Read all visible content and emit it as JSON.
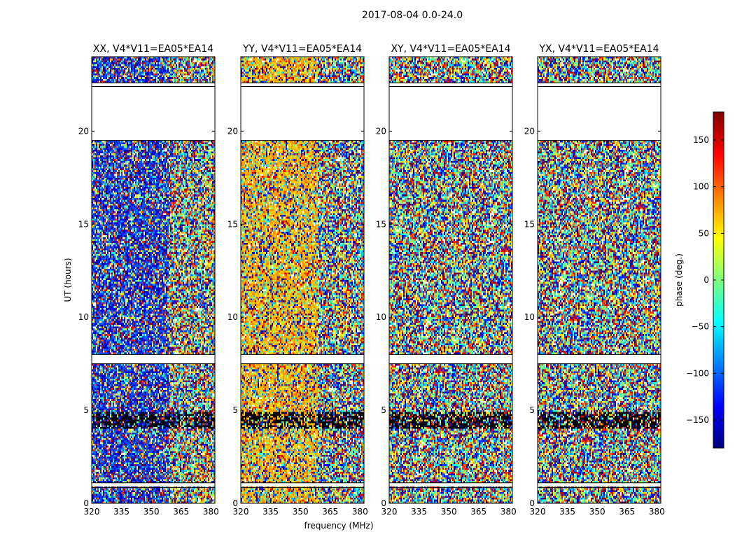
{
  "figure": {
    "suptitle": "2017-08-04 0.0-24.0"
  },
  "chart_data": [
    {
      "type": "heatmap",
      "title": "XX, V4*V11=EA05*EA14",
      "xlabel": "",
      "ylabel": "UT (hours)",
      "xlim": [
        320,
        382
      ],
      "ylim": [
        0,
        24
      ],
      "xticks": [
        "320",
        "335",
        "350",
        "365",
        "380"
      ],
      "yticks": [
        "0",
        "5",
        "10",
        "15",
        "20"
      ],
      "dominant_colors": [
        "#0000cc",
        "#0050ff"
      ],
      "flagged_rows": [
        [
          0.85,
          1.1
        ],
        [
          7.5,
          8.0
        ],
        [
          19.5,
          22.4
        ],
        [
          22.4,
          22.6
        ]
      ]
    },
    {
      "type": "heatmap",
      "title": "YY, V4*V11=EA05*EA14",
      "xlabel": "frequency (MHz)",
      "ylabel": "",
      "xlim": [
        320,
        382
      ],
      "ylim": [
        0,
        24
      ],
      "xticks": [
        "320",
        "335",
        "350",
        "365",
        "380"
      ],
      "yticks": [
        "0",
        "5",
        "10",
        "15",
        "20"
      ],
      "dominant_colors": [
        "#ffcc00",
        "#ff9900"
      ],
      "flagged_rows": [
        [
          0.85,
          1.1
        ],
        [
          7.5,
          8.0
        ],
        [
          19.5,
          22.4
        ],
        [
          22.4,
          22.6
        ]
      ]
    },
    {
      "type": "heatmap",
      "title": "XY, V4*V11=EA05*EA14",
      "xlabel": "",
      "ylabel": "",
      "xlim": [
        320,
        382
      ],
      "ylim": [
        0,
        24
      ],
      "xticks": [
        "320",
        "335",
        "350",
        "365",
        "380"
      ],
      "yticks": [
        "0",
        "5",
        "10",
        "15",
        "20"
      ],
      "dominant_colors": [],
      "flagged_rows": [
        [
          0.85,
          1.1
        ],
        [
          7.5,
          8.0
        ],
        [
          19.5,
          22.4
        ],
        [
          22.4,
          22.6
        ]
      ]
    },
    {
      "type": "heatmap",
      "title": "YX, V4*V11=EA05*EA14",
      "xlabel": "",
      "ylabel": "",
      "xlim": [
        320,
        382
      ],
      "ylim": [
        0,
        24
      ],
      "xticks": [
        "320",
        "335",
        "350",
        "365",
        "380"
      ],
      "yticks": [
        "0",
        "5",
        "10",
        "15",
        "20"
      ],
      "dominant_colors": [],
      "flagged_rows": [
        [
          0.85,
          1.1
        ],
        [
          7.5,
          8.0
        ],
        [
          19.5,
          22.4
        ],
        [
          22.4,
          22.6
        ]
      ]
    }
  ],
  "colorbar": {
    "label": "phase (deg.)",
    "range": [
      -180,
      180
    ],
    "ticks": [
      "150",
      "100",
      "50",
      "0",
      "−50",
      "−100",
      "−150"
    ],
    "tick_values": [
      150,
      100,
      50,
      0,
      -50,
      -100,
      -150
    ],
    "colormap": "jet",
    "colors": [
      "#00007f",
      "#0000ff",
      "#007fff",
      "#00ffff",
      "#7fff7f",
      "#ffff00",
      "#ff7f00",
      "#ff0000",
      "#7f0000"
    ]
  }
}
